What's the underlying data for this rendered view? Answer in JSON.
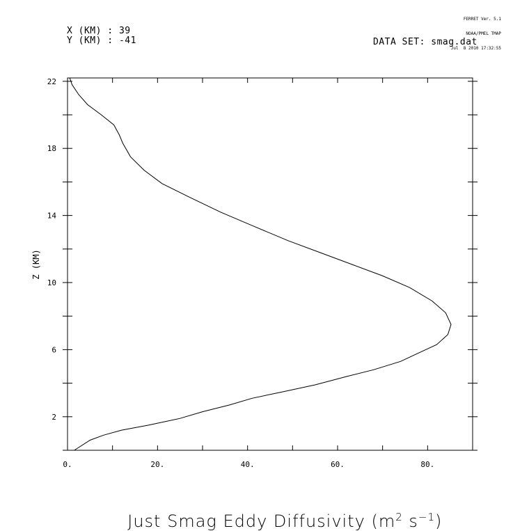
{
  "ferret": {
    "line1": "FERRET Ver. 5.1",
    "line2": "NOAA/PMEL TMAP",
    "line3": "Jul  8 2010 17:32:55"
  },
  "header": {
    "x_label": "X (KM) : 39",
    "y_label": "Y (KM) : -41",
    "dataset": "DATA SET: smag.dat"
  },
  "chart_data": {
    "type": "line",
    "title": "",
    "xlabel_main": "Just Smag Eddy Diffusivity (m",
    "xlabel_sup1": "2",
    "xlabel_mid": " s",
    "xlabel_sup2": "−1",
    "xlabel_end": ")",
    "ylabel": "Z (KM)",
    "xlim": [
      0,
      90
    ],
    "ylim": [
      0,
      22.2
    ],
    "x_ticks": [
      0,
      10,
      20,
      30,
      40,
      50,
      60,
      70,
      80,
      90
    ],
    "x_tick_labels": [
      {
        "value": 0,
        "label": "0."
      },
      {
        "value": 20,
        "label": "20."
      },
      {
        "value": 40,
        "label": "40."
      },
      {
        "value": 60,
        "label": "60."
      },
      {
        "value": 80,
        "label": "80."
      }
    ],
    "y_ticks": [
      0,
      2,
      4,
      6,
      8,
      10,
      12,
      14,
      16,
      18,
      20,
      22
    ],
    "y_tick_labels": [
      {
        "value": 2,
        "label": "2"
      },
      {
        "value": 6,
        "label": "6"
      },
      {
        "value": 10,
        "label": "10"
      },
      {
        "value": 14,
        "label": "14"
      },
      {
        "value": 18,
        "label": "18"
      },
      {
        "value": 22,
        "label": "22"
      }
    ],
    "grid": false,
    "series": [
      {
        "points": [
          [
            1.5,
            0.0
          ],
          [
            5.0,
            0.6
          ],
          [
            8.0,
            0.9
          ],
          [
            12.0,
            1.2
          ],
          [
            18.0,
            1.5
          ],
          [
            25.0,
            1.9
          ],
          [
            30.0,
            2.3
          ],
          [
            36.0,
            2.7
          ],
          [
            41.0,
            3.1
          ],
          [
            48.0,
            3.5
          ],
          [
            55.0,
            3.9
          ],
          [
            62.0,
            4.4
          ],
          [
            68.0,
            4.8
          ],
          [
            74.0,
            5.3
          ],
          [
            78.0,
            5.8
          ],
          [
            82.0,
            6.3
          ],
          [
            84.5,
            6.9
          ],
          [
            85.2,
            7.5
          ],
          [
            84.0,
            8.2
          ],
          [
            81.0,
            8.9
          ],
          [
            76.0,
            9.7
          ],
          [
            70.0,
            10.4
          ],
          [
            63.0,
            11.1
          ],
          [
            56.0,
            11.8
          ],
          [
            49.0,
            12.5
          ],
          [
            41.0,
            13.4
          ],
          [
            34.0,
            14.2
          ],
          [
            27.0,
            15.1
          ],
          [
            21.0,
            15.9
          ],
          [
            17.0,
            16.7
          ],
          [
            14.0,
            17.5
          ],
          [
            12.3,
            18.3
          ],
          [
            11.5,
            18.8
          ],
          [
            10.3,
            19.4
          ],
          [
            7.5,
            20.0
          ],
          [
            4.5,
            20.6
          ],
          [
            2.5,
            21.2
          ],
          [
            1.0,
            21.8
          ],
          [
            0.5,
            22.2
          ]
        ]
      }
    ]
  }
}
